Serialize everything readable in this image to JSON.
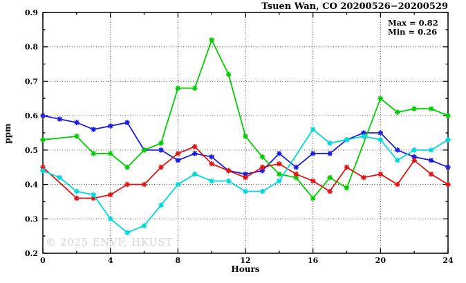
{
  "chart": {
    "title": "Tsuen Wan, CO 20200526−20200529",
    "annotation": {
      "max": "Max = 0.82",
      "min": "Min = 0.26"
    },
    "ylabel": "ppm",
    "xlabel": "Hours",
    "watermark": "© 2025 ENVF, HKUST"
  },
  "chart_data": {
    "type": "line",
    "title": "Tsuen Wan, CO 20200526−20200529",
    "xlabel": "Hours",
    "ylabel": "ppm",
    "xlim": [
      0,
      24
    ],
    "ylim": [
      0.2,
      0.9
    ],
    "x_tick_labels": [
      "0",
      "4",
      "8",
      "12",
      "16",
      "20",
      "24"
    ],
    "x_major_ticks": [
      0,
      4,
      8,
      12,
      16,
      20,
      24
    ],
    "x_minor_step": 2,
    "y_tick_labels": [
      "0.2",
      "0.3",
      "0.4",
      "0.5",
      "0.6",
      "0.7",
      "0.8",
      "0.9"
    ],
    "y_major_ticks": [
      0.2,
      0.3,
      0.4,
      0.5,
      0.6,
      0.7,
      0.8,
      0.9
    ],
    "y_minor_step": 0.05,
    "grid": "dotted-at-major-ticks",
    "legend_position": "none",
    "stat_max": 0.82,
    "stat_min": 0.26,
    "x": [
      0,
      1,
      2,
      3,
      4,
      5,
      6,
      7,
      8,
      9,
      10,
      11,
      12,
      13,
      14,
      15,
      16,
      17,
      18,
      19,
      20,
      21,
      22,
      23,
      24
    ],
    "series": [
      {
        "name": "blue",
        "color": "#1c1cdc",
        "values": [
          0.6,
          0.59,
          0.58,
          0.56,
          0.57,
          0.58,
          0.5,
          0.5,
          0.47,
          0.49,
          0.48,
          0.44,
          0.43,
          0.44,
          0.49,
          0.45,
          0.49,
          0.49,
          0.53,
          0.55,
          0.55,
          0.5,
          0.48,
          0.47,
          0.45
        ]
      },
      {
        "name": "green",
        "color": "#00cc00",
        "values": [
          0.53,
          null,
          0.54,
          0.49,
          0.49,
          0.45,
          0.5,
          0.52,
          0.68,
          0.68,
          0.82,
          0.72,
          0.54,
          0.48,
          0.43,
          0.42,
          0.36,
          0.42,
          0.39,
          null,
          0.65,
          0.61,
          0.62,
          0.62,
          0.6
        ]
      },
      {
        "name": "red",
        "color": "#e01414",
        "values": [
          0.45,
          null,
          0.36,
          0.36,
          0.37,
          0.4,
          0.4,
          0.45,
          0.49,
          0.51,
          0.46,
          0.44,
          0.42,
          0.45,
          0.46,
          0.43,
          0.41,
          0.38,
          0.45,
          0.42,
          0.43,
          0.4,
          0.47,
          0.43,
          0.4
        ]
      },
      {
        "name": "cyan",
        "color": "#00d8d8",
        "values": [
          0.44,
          0.42,
          0.38,
          0.37,
          0.3,
          0.26,
          0.28,
          0.34,
          0.4,
          0.43,
          0.41,
          0.41,
          0.38,
          0.38,
          0.41,
          null,
          0.56,
          0.52,
          0.53,
          0.54,
          0.53,
          0.47,
          0.5,
          0.5,
          0.53
        ]
      }
    ]
  }
}
